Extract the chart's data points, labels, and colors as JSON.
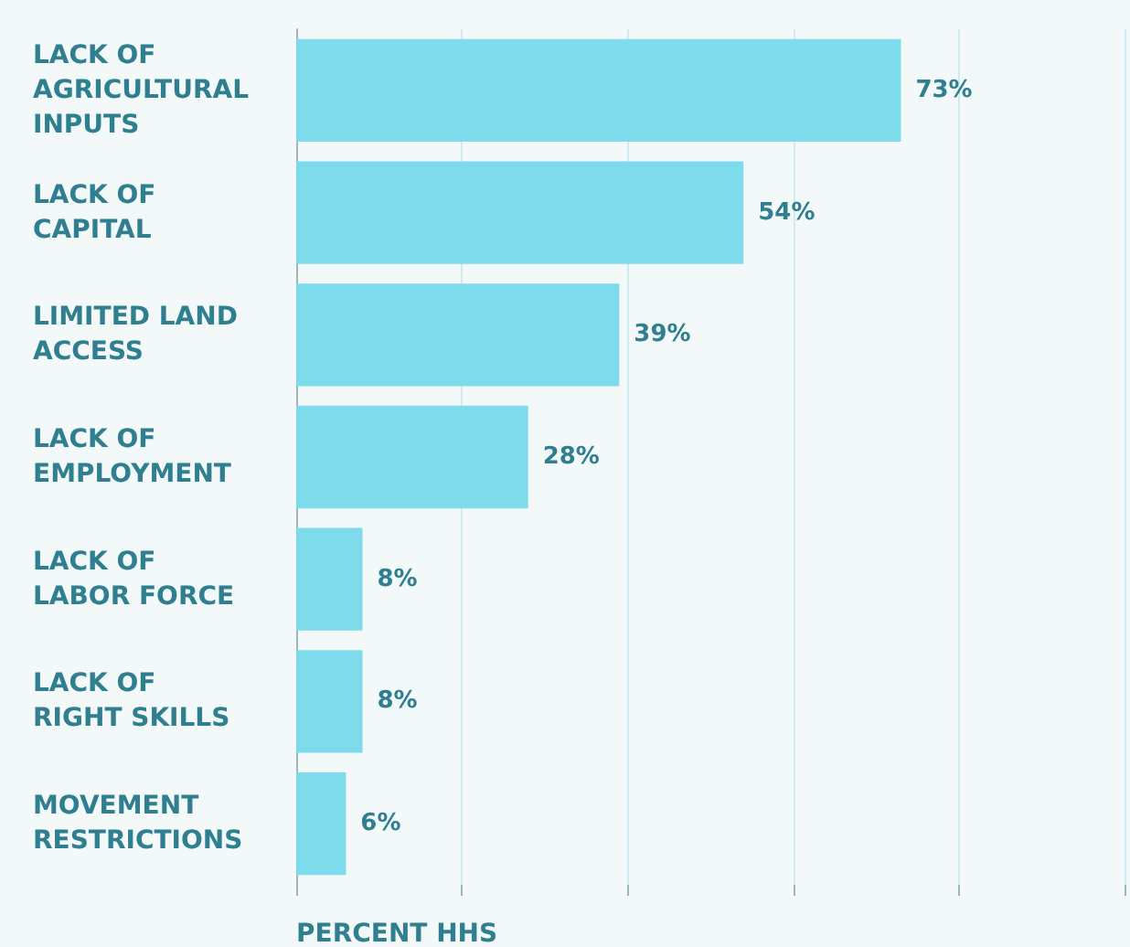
{
  "chart_data": {
    "type": "bar",
    "orientation": "horizontal",
    "xlabel": "PERCENT HHS",
    "categories": [
      "LACK OF\nAGRICULTURAL\nINPUTS",
      "LACK OF\nCAPITAL",
      "LIMITED LAND\nACCESS",
      "LACK OF\nEMPLOYMENT",
      "LACK OF\nLABOR FORCE",
      "LACK OF\nRIGHT SKILLS",
      "MOVEMENT\nRESTRICTIONS"
    ],
    "values": [
      73,
      54,
      39,
      28,
      8,
      8,
      6
    ],
    "value_labels": [
      "73%",
      "54%",
      "39%",
      "28%",
      "8%",
      "8%",
      "6%"
    ],
    "color": "#7ddbeb",
    "xlim": [
      0,
      100
    ],
    "xticks": [
      {
        "value": 0,
        "label": null
      },
      {
        "value": 20,
        "label": null
      },
      {
        "value": 40,
        "label": null
      },
      {
        "value": 60,
        "label": null
      },
      {
        "value": 80,
        "label": null
      },
      {
        "value": 100,
        "label": null
      }
    ],
    "grid": "x"
  }
}
